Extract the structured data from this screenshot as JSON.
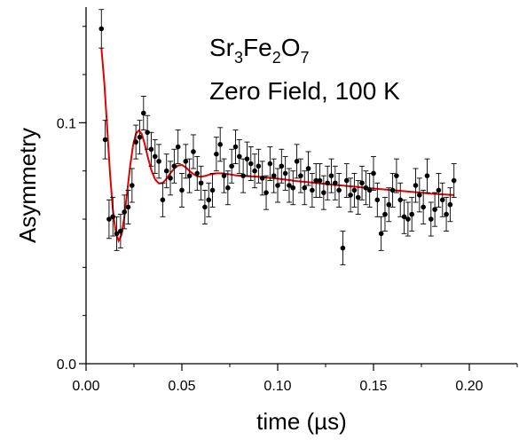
{
  "chart_data": {
    "type": "scatter",
    "xlabel": "time (µs)",
    "ylabel": "Asymmetry",
    "xlim": [
      0,
      0.225
    ],
    "ylim": [
      0,
      0.148
    ],
    "x_ticks": [
      0.0,
      0.05,
      0.1,
      0.15,
      0.2
    ],
    "x_tick_labels": [
      "0.00",
      "0.05",
      "0.10",
      "0.15",
      "0.20"
    ],
    "y_ticks": [
      0.0,
      0.1
    ],
    "y_tick_labels": [
      "0.0",
      "0.1"
    ],
    "annotation": {
      "line1_parts": [
        {
          "text": "Sr",
          "sub": false
        },
        {
          "text": "3",
          "sub": true
        },
        {
          "text": "Fe",
          "sub": false
        },
        {
          "text": "2",
          "sub": true
        },
        {
          "text": "O",
          "sub": false
        },
        {
          "text": "7",
          "sub": true
        }
      ],
      "line2": "Zero Field, 100 K"
    },
    "series": [
      {
        "kind": "data",
        "marker_color": "#000000",
        "points": [
          [
            0.008,
            0.139,
            0.008
          ],
          [
            0.01,
            0.093,
            0.008
          ],
          [
            0.012,
            0.06,
            0.008
          ],
          [
            0.014,
            0.061,
            0.008
          ],
          [
            0.016,
            0.054,
            0.007
          ],
          [
            0.018,
            0.055,
            0.007
          ],
          [
            0.02,
            0.063,
            0.007
          ],
          [
            0.022,
            0.065,
            0.007
          ],
          [
            0.024,
            0.074,
            0.007
          ],
          [
            0.026,
            0.092,
            0.007
          ],
          [
            0.028,
            0.094,
            0.007
          ],
          [
            0.03,
            0.104,
            0.007
          ],
          [
            0.032,
            0.096,
            0.007
          ],
          [
            0.034,
            0.089,
            0.007
          ],
          [
            0.036,
            0.086,
            0.007
          ],
          [
            0.038,
            0.084,
            0.007
          ],
          [
            0.04,
            0.068,
            0.007
          ],
          [
            0.042,
            0.08,
            0.007
          ],
          [
            0.044,
            0.077,
            0.007
          ],
          [
            0.046,
            0.082,
            0.007
          ],
          [
            0.048,
            0.09,
            0.007
          ],
          [
            0.05,
            0.072,
            0.007
          ],
          [
            0.052,
            0.084,
            0.007
          ],
          [
            0.054,
            0.078,
            0.007
          ],
          [
            0.056,
            0.088,
            0.007
          ],
          [
            0.058,
            0.079,
            0.007
          ],
          [
            0.06,
            0.075,
            0.007
          ],
          [
            0.062,
            0.065,
            0.007
          ],
          [
            0.064,
            0.068,
            0.007
          ],
          [
            0.066,
            0.072,
            0.007
          ],
          [
            0.068,
            0.087,
            0.007
          ],
          [
            0.07,
            0.091,
            0.007
          ],
          [
            0.072,
            0.078,
            0.007
          ],
          [
            0.074,
            0.073,
            0.007
          ],
          [
            0.076,
            0.082,
            0.007
          ],
          [
            0.078,
            0.09,
            0.007
          ],
          [
            0.08,
            0.086,
            0.007
          ],
          [
            0.082,
            0.078,
            0.007
          ],
          [
            0.084,
            0.085,
            0.007
          ],
          [
            0.086,
            0.083,
            0.007
          ],
          [
            0.088,
            0.08,
            0.007
          ],
          [
            0.09,
            0.082,
            0.007
          ],
          [
            0.092,
            0.077,
            0.007
          ],
          [
            0.094,
            0.071,
            0.007
          ],
          [
            0.096,
            0.083,
            0.007
          ],
          [
            0.098,
            0.078,
            0.007
          ],
          [
            0.1,
            0.074,
            0.007
          ],
          [
            0.102,
            0.082,
            0.007
          ],
          [
            0.104,
            0.079,
            0.007
          ],
          [
            0.106,
            0.074,
            0.007
          ],
          [
            0.108,
            0.073,
            0.007
          ],
          [
            0.11,
            0.084,
            0.007
          ],
          [
            0.112,
            0.078,
            0.007
          ],
          [
            0.114,
            0.073,
            0.007
          ],
          [
            0.116,
            0.081,
            0.007
          ],
          [
            0.118,
            0.072,
            0.007
          ],
          [
            0.12,
            0.076,
            0.007
          ],
          [
            0.122,
            0.076,
            0.007
          ],
          [
            0.124,
            0.071,
            0.007
          ],
          [
            0.126,
            0.075,
            0.007
          ],
          [
            0.128,
            0.078,
            0.007
          ],
          [
            0.13,
            0.075,
            0.007
          ],
          [
            0.132,
            0.072,
            0.007
          ],
          [
            0.134,
            0.048,
            0.007
          ],
          [
            0.136,
            0.076,
            0.007
          ],
          [
            0.138,
            0.07,
            0.007
          ],
          [
            0.14,
            0.072,
            0.007
          ],
          [
            0.142,
            0.069,
            0.007
          ],
          [
            0.144,
            0.075,
            0.007
          ],
          [
            0.146,
            0.073,
            0.007
          ],
          [
            0.148,
            0.072,
            0.007
          ],
          [
            0.15,
            0.079,
            0.007
          ],
          [
            0.152,
            0.068,
            0.007
          ],
          [
            0.154,
            0.054,
            0.007
          ],
          [
            0.156,
            0.062,
            0.007
          ],
          [
            0.158,
            0.066,
            0.007
          ],
          [
            0.16,
            0.072,
            0.007
          ],
          [
            0.162,
            0.078,
            0.007
          ],
          [
            0.164,
            0.068,
            0.007
          ],
          [
            0.166,
            0.061,
            0.007
          ],
          [
            0.168,
            0.06,
            0.007
          ],
          [
            0.17,
            0.062,
            0.007
          ],
          [
            0.172,
            0.074,
            0.007
          ],
          [
            0.174,
            0.07,
            0.007
          ],
          [
            0.176,
            0.065,
            0.007
          ],
          [
            0.178,
            0.078,
            0.007
          ],
          [
            0.18,
            0.06,
            0.007
          ],
          [
            0.182,
            0.064,
            0.007
          ],
          [
            0.184,
            0.072,
            0.007
          ],
          [
            0.186,
            0.068,
            0.007
          ],
          [
            0.188,
            0.062,
            0.007
          ],
          [
            0.19,
            0.066,
            0.007
          ],
          [
            0.192,
            0.076,
            0.007
          ]
        ]
      },
      {
        "kind": "fit",
        "line_color": "#e00000",
        "points": [
          [
            0.008,
            0.131
          ],
          [
            0.0095,
            0.117
          ],
          [
            0.011,
            0.098
          ],
          [
            0.0125,
            0.079
          ],
          [
            0.014,
            0.064
          ],
          [
            0.0155,
            0.0545
          ],
          [
            0.017,
            0.051
          ],
          [
            0.0185,
            0.0535
          ],
          [
            0.02,
            0.061
          ],
          [
            0.0215,
            0.0715
          ],
          [
            0.023,
            0.082
          ],
          [
            0.0245,
            0.0905
          ],
          [
            0.026,
            0.0955
          ],
          [
            0.0275,
            0.0968
          ],
          [
            0.029,
            0.0955
          ],
          [
            0.0305,
            0.0915
          ],
          [
            0.032,
            0.0865
          ],
          [
            0.034,
            0.0805
          ],
          [
            0.036,
            0.0765
          ],
          [
            0.038,
            0.0748
          ],
          [
            0.04,
            0.075
          ],
          [
            0.042,
            0.0768
          ],
          [
            0.044,
            0.079
          ],
          [
            0.046,
            0.081
          ],
          [
            0.048,
            0.0822
          ],
          [
            0.05,
            0.0825
          ],
          [
            0.052,
            0.0815
          ],
          [
            0.054,
            0.08
          ],
          [
            0.056,
            0.0787
          ],
          [
            0.058,
            0.0778
          ],
          [
            0.06,
            0.0776
          ],
          [
            0.062,
            0.0779
          ],
          [
            0.065,
            0.0786
          ],
          [
            0.068,
            0.079
          ],
          [
            0.071,
            0.079
          ],
          [
            0.074,
            0.0787
          ],
          [
            0.078,
            0.0782
          ],
          [
            0.082,
            0.0779
          ],
          [
            0.086,
            0.0778
          ],
          [
            0.09,
            0.0776
          ],
          [
            0.1,
            0.0768
          ],
          [
            0.11,
            0.0758
          ],
          [
            0.12,
            0.075
          ],
          [
            0.13,
            0.0742
          ],
          [
            0.14,
            0.0735
          ],
          [
            0.15,
            0.0727
          ],
          [
            0.16,
            0.072
          ],
          [
            0.17,
            0.0713
          ],
          [
            0.18,
            0.0706
          ],
          [
            0.192,
            0.07
          ]
        ]
      }
    ]
  }
}
